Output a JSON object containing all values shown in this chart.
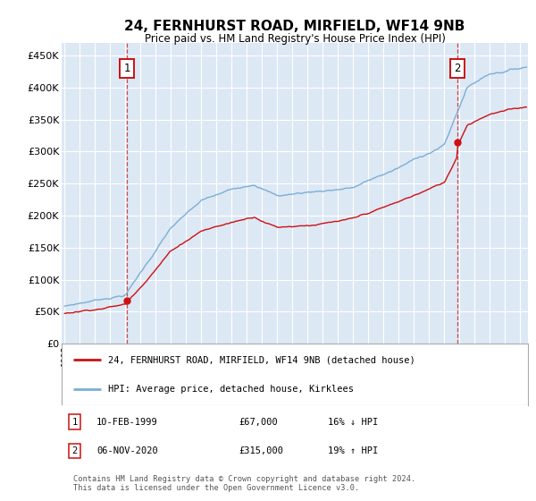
{
  "title": "24, FERNHURST ROAD, MIRFIELD, WF14 9NB",
  "subtitle": "Price paid vs. HM Land Registry's House Price Index (HPI)",
  "ytick_vals": [
    0,
    50000,
    100000,
    150000,
    200000,
    250000,
    300000,
    350000,
    400000,
    450000
  ],
  "ylim": [
    0,
    470000
  ],
  "xlim_start": 1994.8,
  "xlim_end": 2025.5,
  "sale1_x": 1999.11,
  "sale1_y": 67000,
  "sale1_label": "10-FEB-1999",
  "sale1_price": "£67,000",
  "sale1_hpi": "16% ↓ HPI",
  "sale2_x": 2020.85,
  "sale2_y": 315000,
  "sale2_label": "06-NOV-2020",
  "sale2_price": "£315,000",
  "sale2_hpi": "19% ↑ HPI",
  "hpi_color": "#7bafd4",
  "price_color": "#cc1111",
  "bg_color": "#dde8f5",
  "grid_color": "#ffffff",
  "legend_label_red": "24, FERNHURST ROAD, MIRFIELD, WF14 9NB (detached house)",
  "legend_label_blue": "HPI: Average price, detached house, Kirklees",
  "footnote": "Contains HM Land Registry data © Crown copyright and database right 2024.\nThis data is licensed under the Open Government Licence v3.0.",
  "marker_box_color": "#cc1111"
}
